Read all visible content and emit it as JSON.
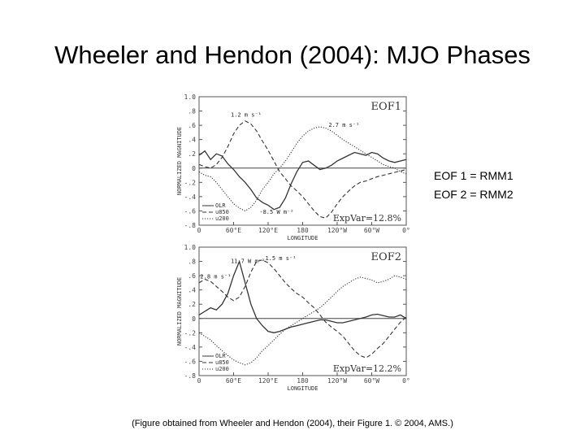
{
  "slide": {
    "title": "Wheeler and Hendon (2004): MJO Phases",
    "notes": [
      "EOF 1 = RMM1",
      "EOF 2 = RMM2"
    ],
    "caption": "(Figure obtained from Wheeler and Hendon (2004), their Figure 1. © 2004, AMS.)"
  },
  "chart_data": [
    {
      "type": "line",
      "title": "EOF1",
      "xlabel": "LONGITUDE",
      "ylabel": "NORMALIZED MAGNITUDE",
      "xticks": [
        "0",
        "60°E",
        "120°E",
        "180",
        "120°W",
        "60°W",
        "0°"
      ],
      "yticks": [
        "-.8",
        "-.6",
        "-.4",
        "-.2",
        "0",
        ".2",
        ".4",
        ".6",
        ".8",
        "1.0"
      ],
      "xlim": [
        0,
        360
      ],
      "ylim": [
        -0.8,
        1.0
      ],
      "expvar": "ExpVar=12.8%",
      "annotations": [
        {
          "text": "1.2 m s⁻¹",
          "x": 55,
          "y": 0.72
        },
        {
          "text": "2.7 m s⁻¹",
          "x": 225,
          "y": 0.58
        },
        {
          "text": "-8.5 W m⁻²",
          "x": 105,
          "y": -0.64
        }
      ],
      "legend": [
        "OLR",
        "u850",
        "u200"
      ],
      "series": [
        {
          "name": "OLR",
          "style": "solid",
          "x": [
            0,
            10,
            20,
            30,
            40,
            50,
            60,
            70,
            80,
            90,
            100,
            110,
            120,
            130,
            140,
            150,
            160,
            170,
            180,
            190,
            200,
            210,
            220,
            230,
            240,
            250,
            260,
            270,
            280,
            290,
            300,
            310,
            320,
            330,
            340,
            350,
            360
          ],
          "y": [
            0.18,
            0.24,
            0.12,
            0.2,
            0.17,
            0.06,
            -0.02,
            -0.12,
            -0.2,
            -0.3,
            -0.42,
            -0.48,
            -0.52,
            -0.58,
            -0.55,
            -0.42,
            -0.22,
            -0.05,
            0.08,
            0.1,
            0.04,
            -0.02,
            0.0,
            0.04,
            0.1,
            0.14,
            0.18,
            0.22,
            0.2,
            0.18,
            0.22,
            0.2,
            0.14,
            0.1,
            0.08,
            0.1,
            0.12
          ]
        },
        {
          "name": "u850",
          "style": "dashed",
          "x": [
            0,
            10,
            20,
            30,
            40,
            50,
            60,
            70,
            80,
            90,
            100,
            110,
            120,
            130,
            140,
            150,
            160,
            170,
            180,
            190,
            200,
            210,
            220,
            230,
            240,
            250,
            260,
            270,
            280,
            290,
            300,
            310,
            320,
            330,
            340,
            350,
            360
          ],
          "y": [
            0.05,
            0.02,
            0.0,
            0.05,
            0.15,
            0.3,
            0.48,
            0.6,
            0.66,
            0.62,
            0.52,
            0.38,
            0.25,
            0.1,
            -0.05,
            -0.15,
            -0.25,
            -0.32,
            -0.4,
            -0.5,
            -0.6,
            -0.68,
            -0.7,
            -0.62,
            -0.5,
            -0.4,
            -0.32,
            -0.25,
            -0.2,
            -0.18,
            -0.15,
            -0.12,
            -0.1,
            -0.08,
            -0.06,
            -0.04,
            -0.02
          ]
        },
        {
          "name": "u200",
          "style": "dotted",
          "x": [
            0,
            10,
            20,
            30,
            40,
            50,
            60,
            70,
            80,
            90,
            100,
            110,
            120,
            130,
            140,
            150,
            160,
            170,
            180,
            190,
            200,
            210,
            220,
            230,
            240,
            250,
            260,
            270,
            280,
            290,
            300,
            310,
            320,
            330,
            340,
            350,
            360
          ],
          "y": [
            -0.05,
            -0.1,
            -0.12,
            -0.2,
            -0.3,
            -0.4,
            -0.5,
            -0.56,
            -0.6,
            -0.55,
            -0.45,
            -0.3,
            -0.2,
            -0.08,
            0.0,
            0.1,
            0.22,
            0.35,
            0.45,
            0.52,
            0.56,
            0.58,
            0.56,
            0.52,
            0.46,
            0.4,
            0.35,
            0.3,
            0.25,
            0.2,
            0.15,
            0.1,
            0.05,
            0.02,
            0.0,
            -0.05,
            -0.08
          ]
        }
      ]
    },
    {
      "type": "line",
      "title": "EOF2",
      "xlabel": "LONGITUDE",
      "ylabel": "NORMALIZED MAGNITUDE",
      "xticks": [
        "0",
        "60°E",
        "120°E",
        "180",
        "120°W",
        "60°W",
        "0°"
      ],
      "yticks": [
        "-.8",
        "-.6",
        "-.4",
        "-.2",
        "0",
        ".2",
        ".4",
        ".6",
        ".8",
        "1.0"
      ],
      "xlim": [
        0,
        360
      ],
      "ylim": [
        -0.8,
        1.0
      ],
      "expvar": "ExpVar=12.2%",
      "annotations": [
        {
          "text": "11.7 W m⁻²",
          "x": 55,
          "y": 0.78
        },
        {
          "text": "1.5 m s⁻¹",
          "x": 115,
          "y": 0.82
        },
        {
          "text": "2.8 m s⁻¹",
          "x": 2,
          "y": 0.56
        }
      ],
      "legend": [
        "OLR",
        "u850",
        "u200"
      ],
      "series": [
        {
          "name": "OLR",
          "style": "solid",
          "x": [
            0,
            10,
            20,
            30,
            40,
            50,
            60,
            70,
            80,
            90,
            100,
            110,
            120,
            130,
            140,
            150,
            160,
            170,
            180,
            190,
            200,
            210,
            220,
            230,
            240,
            250,
            260,
            270,
            280,
            290,
            300,
            310,
            320,
            330,
            340,
            350,
            360
          ],
          "y": [
            0.05,
            0.1,
            0.15,
            0.12,
            0.2,
            0.35,
            0.6,
            0.8,
            0.5,
            0.2,
            0.0,
            -0.1,
            -0.18,
            -0.2,
            -0.18,
            -0.15,
            -0.12,
            -0.1,
            -0.08,
            -0.06,
            -0.04,
            -0.02,
            -0.02,
            -0.04,
            -0.06,
            -0.06,
            -0.04,
            -0.02,
            0.0,
            0.02,
            0.05,
            0.06,
            0.04,
            0.02,
            0.02,
            0.05,
            0.0
          ]
        },
        {
          "name": "u850",
          "style": "dashed",
          "x": [
            0,
            10,
            20,
            30,
            40,
            50,
            60,
            70,
            80,
            90,
            100,
            110,
            120,
            130,
            140,
            150,
            160,
            170,
            180,
            190,
            200,
            210,
            220,
            230,
            240,
            250,
            260,
            270,
            280,
            290,
            300,
            310,
            320,
            330,
            340,
            350,
            360
          ],
          "y": [
            0.5,
            0.55,
            0.52,
            0.45,
            0.38,
            0.3,
            0.25,
            0.3,
            0.45,
            0.65,
            0.8,
            0.82,
            0.78,
            0.7,
            0.6,
            0.5,
            0.42,
            0.35,
            0.3,
            0.22,
            0.15,
            0.05,
            -0.05,
            -0.12,
            -0.18,
            -0.25,
            -0.35,
            -0.45,
            -0.52,
            -0.55,
            -0.5,
            -0.42,
            -0.35,
            -0.25,
            -0.15,
            -0.05,
            0.02
          ]
        },
        {
          "name": "u200",
          "style": "dotted",
          "x": [
            0,
            10,
            20,
            30,
            40,
            50,
            60,
            70,
            80,
            90,
            100,
            110,
            120,
            130,
            140,
            150,
            160,
            170,
            180,
            190,
            200,
            210,
            220,
            230,
            240,
            250,
            260,
            270,
            280,
            290,
            300,
            310,
            320,
            330,
            340,
            350,
            360
          ],
          "y": [
            -0.2,
            -0.25,
            -0.3,
            -0.38,
            -0.45,
            -0.52,
            -0.58,
            -0.62,
            -0.65,
            -0.62,
            -0.55,
            -0.45,
            -0.38,
            -0.3,
            -0.22,
            -0.15,
            -0.1,
            -0.05,
            0.0,
            0.05,
            0.1,
            0.15,
            0.22,
            0.3,
            0.38,
            0.45,
            0.5,
            0.55,
            0.58,
            0.56,
            0.54,
            0.5,
            0.52,
            0.55,
            0.6,
            0.58,
            0.55
          ]
        }
      ]
    }
  ]
}
